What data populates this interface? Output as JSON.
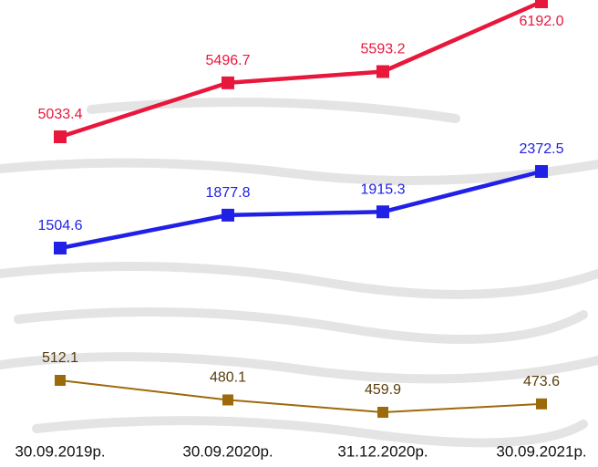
{
  "chart_data": {
    "type": "line",
    "categories": [
      "30.09.2019р.",
      "30.09.2020р.",
      "31.12.2020р.",
      "30.09.2021р."
    ],
    "series": [
      {
        "color": "#e8173c",
        "values": [
          5033.4,
          5496.7,
          5593.2,
          6192.0
        ],
        "value_labels": [
          "5033.4",
          "5496.7",
          "5593.2",
          "6192.0"
        ]
      },
      {
        "color": "#2020e6",
        "values": [
          1504.6,
          1877.8,
          1915.3,
          2372.5
        ],
        "value_labels": [
          "1504.6",
          "1877.8",
          "1915.3",
          "2372.5"
        ]
      },
      {
        "color": "#9c6a0b",
        "values": [
          512.1,
          480.1,
          459.9,
          473.6
        ],
        "value_labels": [
          "512.1",
          "480.1",
          "459.9",
          "473.6"
        ]
      }
    ]
  }
}
